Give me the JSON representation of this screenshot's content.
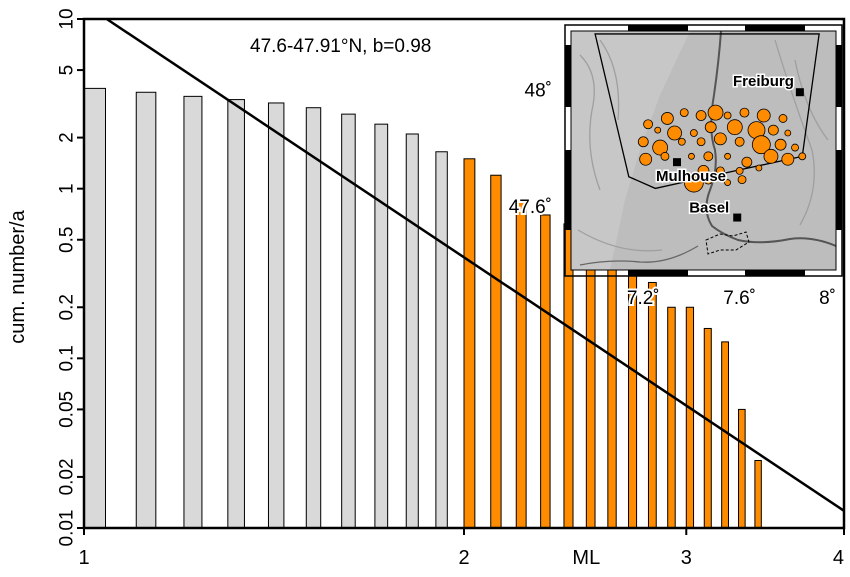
{
  "chart_data": {
    "type": "bar",
    "title": "47.6-47.91°N, b=0.98",
    "xlabel": "ML",
    "ylabel": "cum. number/a",
    "xlim": [
      1,
      4
    ],
    "ylim": [
      0.01,
      10
    ],
    "yscale": "log",
    "xticks": [
      {
        "value": 1,
        "label": "1"
      },
      {
        "value": 2,
        "label": "2"
      },
      {
        "value": 3,
        "label": "3"
      },
      {
        "value": 4,
        "label": "4"
      }
    ],
    "xlabel_position": 2.5,
    "yticks": [
      {
        "value": 10,
        "label": "10"
      },
      {
        "value": 5,
        "label": "5"
      },
      {
        "value": 2,
        "label": "2"
      },
      {
        "value": 1,
        "label": "1"
      },
      {
        "value": 0.5,
        "label": "0.5"
      },
      {
        "value": 0.2,
        "label": "0.2"
      },
      {
        "value": 0.1,
        "label": "0.1"
      },
      {
        "value": 0.05,
        "label": "0.05"
      },
      {
        "value": 0.02,
        "label": "0.02"
      },
      {
        "value": 0.01,
        "label": "0.01"
      }
    ],
    "bar_width": 0.04,
    "colors": {
      "incomplete": "#d9d9d9",
      "complete": "#ff8c00",
      "outline": "#000000"
    },
    "bars": [
      {
        "ml": 1.0,
        "value": 3.9,
        "group": "incomplete"
      },
      {
        "ml": 1.1,
        "value": 3.7,
        "group": "incomplete"
      },
      {
        "ml": 1.2,
        "value": 3.5,
        "group": "incomplete"
      },
      {
        "ml": 1.3,
        "value": 3.35,
        "group": "incomplete"
      },
      {
        "ml": 1.4,
        "value": 3.2,
        "group": "incomplete"
      },
      {
        "ml": 1.5,
        "value": 3.0,
        "group": "incomplete"
      },
      {
        "ml": 1.6,
        "value": 2.75,
        "group": "incomplete"
      },
      {
        "ml": 1.7,
        "value": 2.4,
        "group": "incomplete"
      },
      {
        "ml": 1.8,
        "value": 2.1,
        "group": "incomplete"
      },
      {
        "ml": 1.9,
        "value": 1.65,
        "group": "incomplete"
      },
      {
        "ml": 2.0,
        "value": 1.5,
        "group": "complete"
      },
      {
        "ml": 2.1,
        "value": 1.2,
        "group": "complete"
      },
      {
        "ml": 2.2,
        "value": 0.88,
        "group": "complete"
      },
      {
        "ml": 2.3,
        "value": 0.7,
        "group": "complete"
      },
      {
        "ml": 2.4,
        "value": 0.62,
        "group": "complete"
      },
      {
        "ml": 2.5,
        "value": 0.54,
        "group": "complete"
      },
      {
        "ml": 2.6,
        "value": 0.46,
        "group": "complete"
      },
      {
        "ml": 2.7,
        "value": 0.4,
        "group": "complete"
      },
      {
        "ml": 2.8,
        "value": 0.28,
        "group": "complete"
      },
      {
        "ml": 2.9,
        "value": 0.2,
        "group": "complete"
      },
      {
        "ml": 3.0,
        "value": 0.2,
        "group": "complete"
      },
      {
        "ml": 3.1,
        "value": 0.15,
        "group": "complete"
      },
      {
        "ml": 3.2,
        "value": 0.125,
        "group": "complete"
      },
      {
        "ml": 3.3,
        "value": 0.05,
        "group": "complete"
      },
      {
        "ml": 3.4,
        "value": 0.025,
        "group": "complete"
      }
    ],
    "fit_line": {
      "a": 11.0,
      "b": 0.98
    },
    "inset_map": {
      "lon_range": [
        6.9,
        8.0
      ],
      "lat_range": [
        47.38,
        48.2
      ],
      "x_ticks": [
        {
          "value": 7.2,
          "label": "7.2˚"
        },
        {
          "value": 7.6,
          "label": "7.6˚"
        },
        {
          "value": 8.0,
          "label": "8˚"
        }
      ],
      "y_ticks": [
        {
          "value": 48.0,
          "label": "48˚"
        },
        {
          "value": 47.6,
          "label": "47.6˚"
        }
      ],
      "land_color": "#bdbdbd",
      "river_color": "#555555",
      "quake_color": "#ff8c00",
      "cities": [
        {
          "name": "Freiburg",
          "lon": 7.85,
          "lat": 47.99
        },
        {
          "name": "Mulhouse",
          "lon": 7.34,
          "lat": 47.75
        },
        {
          "name": "Basel",
          "lon": 7.59,
          "lat": 47.56
        }
      ],
      "region_polygon": [
        [
          7.0,
          48.19
        ],
        [
          7.93,
          48.19
        ],
        [
          7.86,
          47.77
        ],
        [
          7.58,
          47.72
        ],
        [
          7.25,
          47.66
        ],
        [
          7.14,
          47.7
        ]
      ],
      "earthquakes": [
        {
          "lon": 7.22,
          "lat": 47.88,
          "mag": 2.3
        },
        {
          "lon": 7.3,
          "lat": 47.9,
          "mag": 2.6
        },
        {
          "lon": 7.37,
          "lat": 47.92,
          "mag": 2.2
        },
        {
          "lon": 7.44,
          "lat": 47.91,
          "mag": 2.4
        },
        {
          "lon": 7.5,
          "lat": 47.92,
          "mag": 2.9
        },
        {
          "lon": 7.55,
          "lat": 47.91,
          "mag": 2.1
        },
        {
          "lon": 7.62,
          "lat": 47.92,
          "mag": 2.3
        },
        {
          "lon": 7.7,
          "lat": 47.91,
          "mag": 2.7
        },
        {
          "lon": 7.78,
          "lat": 47.9,
          "mag": 2.2
        },
        {
          "lon": 7.26,
          "lat": 47.86,
          "mag": 2.0
        },
        {
          "lon": 7.33,
          "lat": 47.85,
          "mag": 2.8
        },
        {
          "lon": 7.41,
          "lat": 47.85,
          "mag": 2.1
        },
        {
          "lon": 7.48,
          "lat": 47.87,
          "mag": 2.5
        },
        {
          "lon": 7.58,
          "lat": 47.87,
          "mag": 2.9
        },
        {
          "lon": 7.67,
          "lat": 47.86,
          "mag": 3.1
        },
        {
          "lon": 7.74,
          "lat": 47.86,
          "mag": 2.4
        },
        {
          "lon": 7.8,
          "lat": 47.85,
          "mag": 2.0
        },
        {
          "lon": 7.2,
          "lat": 47.82,
          "mag": 2.4
        },
        {
          "lon": 7.27,
          "lat": 47.8,
          "mag": 2.9
        },
        {
          "lon": 7.36,
          "lat": 47.82,
          "mag": 2.1
        },
        {
          "lon": 7.44,
          "lat": 47.82,
          "mag": 2.2
        },
        {
          "lon": 7.52,
          "lat": 47.83,
          "mag": 2.6
        },
        {
          "lon": 7.6,
          "lat": 47.82,
          "mag": 2.3
        },
        {
          "lon": 7.69,
          "lat": 47.81,
          "mag": 3.2
        },
        {
          "lon": 7.77,
          "lat": 47.81,
          "mag": 2.5
        },
        {
          "lon": 7.83,
          "lat": 47.8,
          "mag": 2.1
        },
        {
          "lon": 7.21,
          "lat": 47.76,
          "mag": 2.6
        },
        {
          "lon": 7.29,
          "lat": 47.77,
          "mag": 2.2
        },
        {
          "lon": 7.4,
          "lat": 47.77,
          "mag": 2.0
        },
        {
          "lon": 7.47,
          "lat": 47.77,
          "mag": 2.3
        },
        {
          "lon": 7.55,
          "lat": 47.77,
          "mag": 2.0
        },
        {
          "lon": 7.63,
          "lat": 47.75,
          "mag": 2.4
        },
        {
          "lon": 7.73,
          "lat": 47.77,
          "mag": 2.8
        },
        {
          "lon": 7.8,
          "lat": 47.76,
          "mag": 2.6
        },
        {
          "lon": 7.86,
          "lat": 47.77,
          "mag": 2.1
        },
        {
          "lon": 7.45,
          "lat": 47.72,
          "mag": 2.5
        },
        {
          "lon": 7.52,
          "lat": 47.72,
          "mag": 2.2
        },
        {
          "lon": 7.6,
          "lat": 47.72,
          "mag": 2.1
        },
        {
          "lon": 7.68,
          "lat": 47.73,
          "mag": 2.0
        },
        {
          "lon": 7.41,
          "lat": 47.68,
          "mag": 3.3
        },
        {
          "lon": 7.47,
          "lat": 47.69,
          "mag": 2.3
        },
        {
          "lon": 7.55,
          "lat": 47.68,
          "mag": 2.0
        },
        {
          "lon": 7.61,
          "lat": 47.69,
          "mag": 2.2
        }
      ]
    }
  }
}
